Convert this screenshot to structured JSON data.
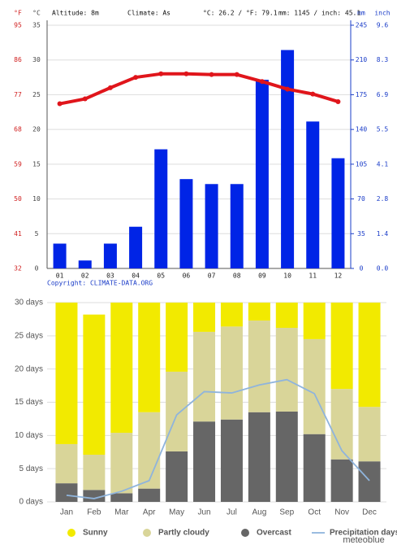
{
  "chart_data": [
    {
      "type": "combo",
      "y_label_alt": "°F",
      "y_label": "°C",
      "y2_label": "mm",
      "y2_label_alt": "inch",
      "annotations": [
        "Altitude: 8m",
        "Climate: As",
        "°C: 26.2 / °F: 79.1",
        "mm: 1145 / inch: 45.1"
      ],
      "credit": "Copyright: CLIMATE-DATA.ORG",
      "categories": [
        "01",
        "02",
        "03",
        "04",
        "05",
        "06",
        "07",
        "08",
        "09",
        "10",
        "11",
        "12"
      ],
      "series": [
        {
          "type": "bar",
          "axis": "y2",
          "color": "#0024e6",
          "values": [
            25,
            8,
            25,
            42,
            120,
            90,
            85,
            85,
            190,
            220,
            148,
            111
          ]
        },
        {
          "type": "line",
          "axis": "y",
          "color": "#e0151b",
          "values": [
            23.7,
            24.4,
            26.0,
            27.5,
            28.0,
            28.0,
            27.9,
            27.9,
            26.9,
            25.8,
            25.1,
            24.0
          ]
        }
      ],
      "ylim": [
        0,
        35
      ],
      "yticks": [
        0,
        5,
        10,
        15,
        20,
        25,
        30,
        35
      ],
      "yticks_alt": [
        32,
        41,
        50,
        59,
        68,
        77,
        86,
        95
      ],
      "y2lim": [
        0,
        245
      ],
      "y2ticks": [
        0,
        35,
        70,
        105,
        140,
        175,
        210,
        245
      ],
      "y2ticks_alt": [
        {
          "value": 0,
          "label": "0.0"
        },
        1.4,
        2.8,
        4.1,
        5.5,
        6.9,
        8.3,
        9.6
      ],
      "grid": true
    },
    {
      "type": "stacked",
      "credit": "meteoblue",
      "categories": [
        "Jan",
        "Feb",
        "Mar",
        "Apr",
        "May",
        "Jun",
        "Jul",
        "Aug",
        "Sep",
        "Oct",
        "Nov",
        "Dec"
      ],
      "series": [
        {
          "name": "Sunny",
          "type": "bar",
          "color": "#f2ea00",
          "values": [
            21.3,
            21.1,
            19.6,
            16.5,
            10.4,
            4.4,
            3.6,
            2.7,
            3.8,
            5.5,
            13.0,
            15.7
          ]
        },
        {
          "name": "Partly cloudy",
          "type": "bar",
          "color": "#d9d599",
          "values": [
            5.9,
            5.3,
            9.1,
            11.5,
            12.0,
            13.5,
            14.0,
            13.8,
            12.6,
            14.3,
            10.6,
            8.2
          ]
        },
        {
          "name": "Overcast",
          "type": "bar",
          "color": "#666666",
          "values": [
            2.8,
            1.8,
            1.3,
            2.0,
            7.6,
            12.1,
            12.4,
            13.5,
            13.6,
            10.2,
            6.4,
            6.1
          ]
        },
        {
          "name": "Precipitation days",
          "type": "line",
          "color": "#8fb4dc",
          "values": [
            1.0,
            0.5,
            1.6,
            3.2,
            13.1,
            16.6,
            16.4,
            17.6,
            18.4,
            16.3,
            7.7,
            3.2
          ]
        }
      ],
      "ylim": [
        0,
        30
      ],
      "yticks": [
        {
          "value": 0,
          "label": "0 days"
        },
        {
          "value": 5,
          "label": "5 days"
        },
        {
          "value": 10,
          "label": "10 days"
        },
        {
          "value": 15,
          "label": "15 days"
        },
        {
          "value": 20,
          "label": "20 days"
        },
        {
          "value": 25,
          "label": "25 days"
        },
        {
          "value": 30,
          "label": "30 days"
        }
      ],
      "grid": true,
      "legend": "bottom"
    }
  ]
}
